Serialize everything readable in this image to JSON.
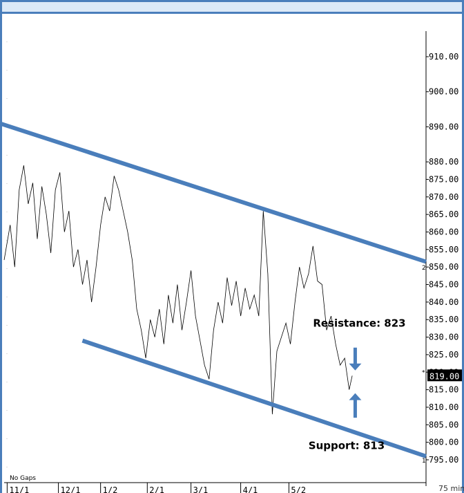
{
  "chart_data": {
    "type": "line",
    "title": "",
    "ylim": [
      792,
      917
    ],
    "yticks": [
      "910.00",
      "900.00",
      "890.00",
      "880.00",
      "875.00",
      "870.00",
      "865.00",
      "860.00",
      "855.00",
      "850.00",
      "845.00",
      "840.00",
      "835.00",
      "830.00",
      "825.00",
      "820.00",
      "815.00",
      "810.00",
      "805.00",
      "800.00",
      "795.00"
    ],
    "ytick_values": [
      910,
      900,
      890,
      880,
      875,
      870,
      865,
      860,
      855,
      850,
      845,
      840,
      835,
      830,
      825,
      820,
      815,
      810,
      805,
      800,
      795
    ],
    "xticks": [
      "11/1",
      "12/1",
      "1/2",
      "2/1",
      "3/1",
      "4/1",
      "5/2"
    ],
    "last_price": "819.00",
    "last_value": 819,
    "marker_small_1": "1",
    "marker_small_2": "2",
    "footer_left": "No Gaps",
    "footer_right": "75 min",
    "price_series": [
      {
        "t": 0,
        "v": 852
      },
      {
        "t": 4,
        "v": 862
      },
      {
        "t": 7,
        "v": 850
      },
      {
        "t": 10,
        "v": 872
      },
      {
        "t": 13,
        "v": 879
      },
      {
        "t": 16,
        "v": 868
      },
      {
        "t": 19,
        "v": 874
      },
      {
        "t": 22,
        "v": 858
      },
      {
        "t": 25,
        "v": 873
      },
      {
        "t": 28,
        "v": 865
      },
      {
        "t": 31,
        "v": 854
      },
      {
        "t": 34,
        "v": 872
      },
      {
        "t": 37,
        "v": 877
      },
      {
        "t": 40,
        "v": 860
      },
      {
        "t": 43,
        "v": 866
      },
      {
        "t": 46,
        "v": 850
      },
      {
        "t": 49,
        "v": 855
      },
      {
        "t": 52,
        "v": 845
      },
      {
        "t": 55,
        "v": 852
      },
      {
        "t": 58,
        "v": 840
      },
      {
        "t": 61,
        "v": 850
      },
      {
        "t": 64,
        "v": 862
      },
      {
        "t": 67,
        "v": 870
      },
      {
        "t": 70,
        "v": 866
      },
      {
        "t": 73,
        "v": 876
      },
      {
        "t": 76,
        "v": 872
      },
      {
        "t": 79,
        "v": 866
      },
      {
        "t": 82,
        "v": 860
      },
      {
        "t": 85,
        "v": 852
      },
      {
        "t": 88,
        "v": 838
      },
      {
        "t": 91,
        "v": 832
      },
      {
        "t": 94,
        "v": 824
      },
      {
        "t": 97,
        "v": 835
      },
      {
        "t": 100,
        "v": 830
      },
      {
        "t": 103,
        "v": 838
      },
      {
        "t": 106,
        "v": 828
      },
      {
        "t": 109,
        "v": 842
      },
      {
        "t": 112,
        "v": 834
      },
      {
        "t": 115,
        "v": 845
      },
      {
        "t": 118,
        "v": 832
      },
      {
        "t": 121,
        "v": 840
      },
      {
        "t": 124,
        "v": 849
      },
      {
        "t": 127,
        "v": 836
      },
      {
        "t": 130,
        "v": 829
      },
      {
        "t": 133,
        "v": 822
      },
      {
        "t": 136,
        "v": 818
      },
      {
        "t": 139,
        "v": 832
      },
      {
        "t": 142,
        "v": 840
      },
      {
        "t": 145,
        "v": 834
      },
      {
        "t": 148,
        "v": 847
      },
      {
        "t": 151,
        "v": 839
      },
      {
        "t": 154,
        "v": 846
      },
      {
        "t": 157,
        "v": 836
      },
      {
        "t": 160,
        "v": 844
      },
      {
        "t": 163,
        "v": 838
      },
      {
        "t": 166,
        "v": 842
      },
      {
        "t": 169,
        "v": 836
      },
      {
        "t": 172,
        "v": 866
      },
      {
        "t": 175,
        "v": 848
      },
      {
        "t": 178,
        "v": 808
      },
      {
        "t": 181,
        "v": 826
      },
      {
        "t": 184,
        "v": 830
      },
      {
        "t": 187,
        "v": 834
      },
      {
        "t": 190,
        "v": 828
      },
      {
        "t": 193,
        "v": 840
      },
      {
        "t": 196,
        "v": 850
      },
      {
        "t": 199,
        "v": 844
      },
      {
        "t": 202,
        "v": 848
      },
      {
        "t": 205,
        "v": 856
      },
      {
        "t": 208,
        "v": 846
      },
      {
        "t": 211,
        "v": 845
      },
      {
        "t": 214,
        "v": 832
      },
      {
        "t": 217,
        "v": 836
      },
      {
        "t": 220,
        "v": 828
      },
      {
        "t": 223,
        "v": 822
      },
      {
        "t": 226,
        "v": 824
      },
      {
        "t": 229,
        "v": 815
      },
      {
        "t": 231,
        "v": 819
      }
    ],
    "xlim": [
      0,
      280
    ],
    "tick_t": [
      2,
      36,
      64,
      95,
      124,
      157,
      189
    ],
    "trendlines": [
      {
        "name": "resistance",
        "t1": -3,
        "v1": 891,
        "t2": 280,
        "v2": 851.5
      },
      {
        "name": "support",
        "t1": 52,
        "v1": 829,
        "t2": 280,
        "v2": 796
      }
    ],
    "annotations": [
      {
        "label": "Resistance: 823",
        "t": 205,
        "v": 834
      },
      {
        "label": "Support: 813",
        "t": 202,
        "v": 799
      }
    ],
    "arrow_down": {
      "t": 233,
      "v_top": 827,
      "v_bottom": 820.5
    },
    "arrow_up": {
      "t": 233,
      "v_top": 814,
      "v_bottom": 807
    }
  }
}
